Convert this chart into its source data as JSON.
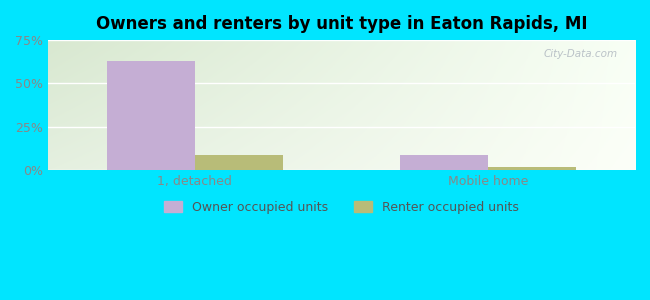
{
  "title": "Owners and renters by unit type in Eaton Rapids, MI",
  "categories": [
    "1, detached",
    "Mobile home"
  ],
  "owner_values": [
    63.0,
    9.0
  ],
  "renter_values": [
    9.0,
    2.0
  ],
  "owner_color": "#c5aed4",
  "renter_color": "#b8bc78",
  "bar_width": 0.3,
  "ylim": [
    0,
    75
  ],
  "yticks": [
    0,
    25,
    50,
    75
  ],
  "ytick_labels": [
    "0%",
    "25%",
    "50%",
    "75%"
  ],
  "legend_owner": "Owner occupied units",
  "legend_renter": "Renter occupied units",
  "outer_color": "#00e5ff",
  "title_fontsize": 12,
  "tick_fontsize": 9,
  "legend_fontsize": 9,
  "watermark": "City-Data.com",
  "bg_left_color": "#d8e8d0",
  "bg_right_color": "#f0f5ee",
  "bg_top_color": "#e8f0e8",
  "bg_bottom_color": "#f8fbf5"
}
